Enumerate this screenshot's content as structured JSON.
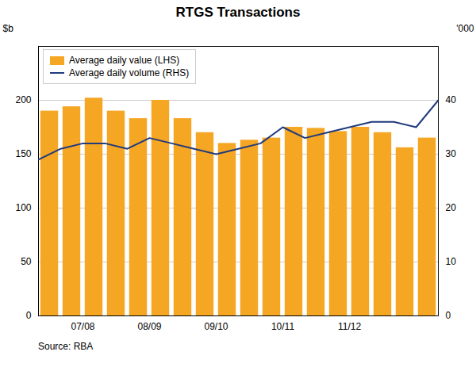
{
  "chart_data": {
    "type": "bar",
    "title": "RTGS Transactions",
    "xlim": [
      -0.5,
      17.5
    ],
    "xticks": [
      {
        "value": 1.5,
        "label": "07/08"
      },
      {
        "value": 4.5,
        "label": "08/09"
      },
      {
        "value": 7.5,
        "label": "09/10"
      },
      {
        "value": 10.5,
        "label": "10/11"
      },
      {
        "value": 13.5,
        "label": "11/12"
      }
    ],
    "ylim": [
      0,
      250
    ],
    "yticks": [
      0,
      50,
      100,
      150,
      200
    ],
    "y2lim": [
      0,
      50
    ],
    "y2ticks": [
      0,
      10,
      20,
      30,
      40
    ],
    "ylabel": "$b",
    "y2label": "'000",
    "grid": true,
    "legend": "upper left",
    "source": "Source: RBA",
    "series": [
      {
        "name": "Average daily value (LHS)",
        "type": "bar",
        "color": "#F5A623",
        "x": [
          0,
          1,
          2,
          3,
          4,
          5,
          6,
          7,
          8,
          9,
          10,
          11,
          12,
          13,
          14,
          15,
          16,
          17
        ],
        "values": [
          190,
          194,
          202,
          190,
          183,
          200,
          183,
          170,
          160,
          163,
          165,
          175,
          174,
          171,
          175,
          170,
          156,
          165
        ]
      },
      {
        "name": "Average daily volume (RHS)",
        "type": "line",
        "color": "#1F3A7D",
        "axis": "y2",
        "x": [
          -0.5,
          0.5,
          1.5,
          2.5,
          3.5,
          4.5,
          5.5,
          6.5,
          7.5,
          8.5,
          9.5,
          10.5,
          11.5,
          12.5,
          13.5,
          14.5,
          15.5,
          16.5,
          17.5
        ],
        "values": [
          29,
          31,
          32,
          32,
          31,
          33,
          32,
          31,
          30,
          31,
          32,
          35,
          33,
          34,
          35,
          36,
          36,
          35,
          40
        ]
      }
    ]
  }
}
